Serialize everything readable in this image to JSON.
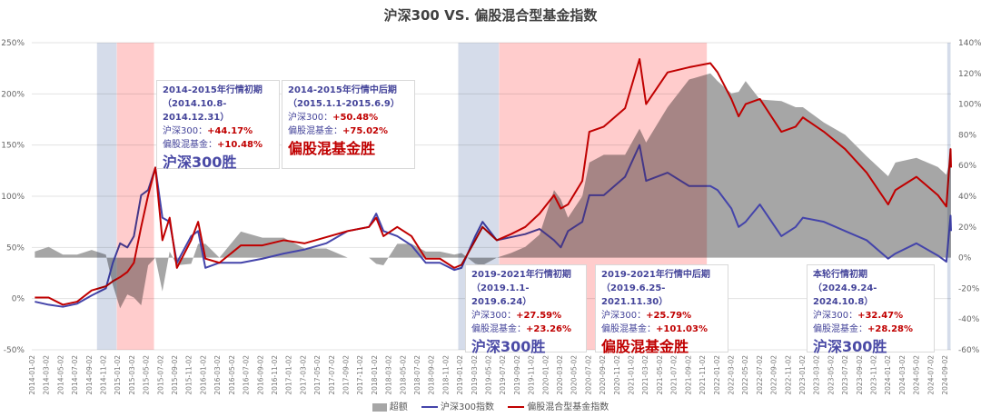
{
  "chart_data": {
    "type": "line",
    "title": "沪深300 VS. 偏股混合型基金指数",
    "left_axis": {
      "ylim": [
        -50,
        250
      ],
      "ticks": [
        "250%",
        "200%",
        "150%",
        "100%",
        "50%",
        "0%",
        "-50%"
      ]
    },
    "right_axis": {
      "ylim": [
        -60,
        140
      ],
      "ticks": [
        "140%",
        "120%",
        "100%",
        "80%",
        "60%",
        "40%",
        "20%",
        "0%",
        "-20%",
        "-40%",
        "-60%"
      ]
    },
    "x_tick_labels_interval_months": 2,
    "x_tick_first": "2014-01-02",
    "x_tick_last": "2024-09-02",
    "x_range": [
      "2014-01-02",
      "2024-10-10"
    ],
    "grid": true,
    "legend_position": "bottom",
    "colors": {
      "excess": "#a6a6a6",
      "hs300": "#4444aa",
      "fund": "#c00000",
      "band_hs300": "#d5dcea",
      "band_fund": "#ffcccc"
    },
    "dates": [
      "2014-01",
      "2014-03",
      "2014-05",
      "2014-07",
      "2014-09",
      "2014-11",
      "2014-12",
      "2015-01",
      "2015-02",
      "2015-03",
      "2015-04",
      "2015-05",
      "2015-06",
      "2015-07",
      "2015-08",
      "2015-09",
      "2015-11",
      "2015-12",
      "2016-01",
      "2016-03",
      "2016-06",
      "2016-09",
      "2016-12",
      "2017-03",
      "2017-06",
      "2017-09",
      "2017-12",
      "2018-01",
      "2018-02",
      "2018-04",
      "2018-06",
      "2018-08",
      "2018-10",
      "2018-12",
      "2019-01",
      "2019-03",
      "2019-04",
      "2019-06",
      "2019-08",
      "2019-10",
      "2019-12",
      "2020-02",
      "2020-03",
      "2020-04",
      "2020-06",
      "2020-07",
      "2020-09",
      "2020-12",
      "2021-02",
      "2021-03",
      "2021-06",
      "2021-09",
      "2021-12",
      "2022-01",
      "2022-03",
      "2022-04",
      "2022-05",
      "2022-07",
      "2022-10",
      "2022-12",
      "2023-01",
      "2023-04",
      "2023-07",
      "2023-10",
      "2024-01",
      "2024-02",
      "2024-05",
      "2024-08",
      "2024-09-20",
      "2024-10-08",
      "2024-10-10"
    ],
    "series": [
      {
        "name": "超额",
        "axis": "right",
        "kind": "area",
        "values": [
          4,
          7,
          2,
          2,
          5,
          2,
          -18,
          -33,
          -24,
          -26,
          -31,
          -5,
          0,
          -22,
          4,
          -5,
          -4,
          9,
          9,
          0,
          17,
          13,
          13,
          6,
          6,
          0,
          0,
          -4,
          -5,
          9,
          9,
          4,
          4,
          2,
          3,
          -4,
          -5,
          0,
          3,
          7,
          15,
          44,
          38,
          26,
          40,
          62,
          67,
          67,
          84,
          75,
          98,
          116,
          120,
          115,
          107,
          108,
          115,
          103,
          102,
          98,
          98,
          88,
          80,
          66,
          53,
          62,
          65,
          59,
          54,
          65,
          62
        ]
      },
      {
        "name": "沪深300指数",
        "axis": "left",
        "kind": "line",
        "values": [
          -3,
          -6,
          -8,
          -5,
          3,
          10,
          35,
          54,
          50,
          61,
          101,
          106,
          128,
          79,
          75,
          35,
          61,
          66,
          30,
          35,
          35,
          39,
          44,
          48,
          54,
          66,
          70,
          83,
          66,
          61,
          52,
          35,
          35,
          28,
          30,
          61,
          75,
          57,
          60,
          63,
          68,
          57,
          50,
          66,
          75,
          101,
          101,
          119,
          150,
          115,
          123,
          110,
          110,
          106,
          88,
          70,
          75,
          92,
          61,
          70,
          79,
          75,
          66,
          57,
          39,
          44,
          54,
          42,
          36,
          81,
          66
        ]
      },
      {
        "name": "偏股混合型基金指数",
        "axis": "left",
        "kind": "line",
        "values": [
          1,
          1,
          -6,
          -3,
          8,
          12,
          17,
          21,
          26,
          35,
          70,
          101,
          128,
          57,
          79,
          30,
          57,
          75,
          39,
          35,
          52,
          52,
          57,
          54,
          60,
          66,
          70,
          79,
          61,
          70,
          61,
          39,
          39,
          30,
          33,
          57,
          70,
          57,
          63,
          70,
          83,
          101,
          88,
          92,
          115,
          163,
          168,
          186,
          234,
          190,
          221,
          226,
          230,
          221,
          195,
          178,
          190,
          195,
          163,
          168,
          177,
          163,
          146,
          123,
          92,
          106,
          119,
          101,
          90,
          146,
          128
        ]
      }
    ],
    "bands": [
      {
        "start": "2014-10-08",
        "end": "2014-12-31",
        "winner": "hs300"
      },
      {
        "start": "2015-01-01",
        "end": "2015-06-09",
        "winner": "fund"
      },
      {
        "start": "2019-01-01",
        "end": "2019-06-24",
        "winner": "hs300"
      },
      {
        "start": "2019-06-25",
        "end": "2021-11-30",
        "winner": "fund"
      },
      {
        "start": "2024-09-24",
        "end": "2024-10-08",
        "winner": "hs300"
      }
    ],
    "annotations": [
      {
        "title": "2014-2015年行情初期",
        "period": "（2014.10.8-2014.12.31）",
        "hs300_label": "沪深300：",
        "hs300_value": "+44.17%",
        "fund_label": "偏股混基金：",
        "fund_value": "+10.48%",
        "winner_text": "沪深300胜",
        "winner": "hs300"
      },
      {
        "title": "2014-2015年行情中后期",
        "period": "（2015.1.1-2015.6.9）",
        "hs300_label": "沪深300：",
        "hs300_value": "+50.48%",
        "fund_label": "偏股混基金：",
        "fund_value": "+75.02%",
        "winner_text": "偏股混基金胜",
        "winner": "fund"
      },
      {
        "title": "2019-2021年行情初期",
        "period": "（2019.1.1-2019.6.24）",
        "hs300_label": "沪深300：",
        "hs300_value": "+27.59%",
        "fund_label": "偏股混基金：",
        "fund_value": "+23.26%",
        "winner_text": "沪深300胜",
        "winner": "hs300"
      },
      {
        "title": "2019-2021年行情中后期",
        "period": "（2019.6.25-2021.11.30）",
        "hs300_label": "沪深300：",
        "hs300_value": "+25.79%",
        "fund_label": "偏股混基金：",
        "fund_value": "+101.03%",
        "winner_text": "偏股混基金胜",
        "winner": "fund"
      },
      {
        "title": "本轮行情初期",
        "period": "（2024.9.24-2024.10.8）",
        "hs300_label": "沪深300：",
        "hs300_value": "+32.47%",
        "fund_label": "偏股混基金：",
        "fund_value": "+28.28%",
        "winner_text": "沪深300胜",
        "winner": "hs300"
      }
    ],
    "legend": [
      "超额",
      "沪深300指数",
      "偏股混合型基金指数"
    ]
  }
}
